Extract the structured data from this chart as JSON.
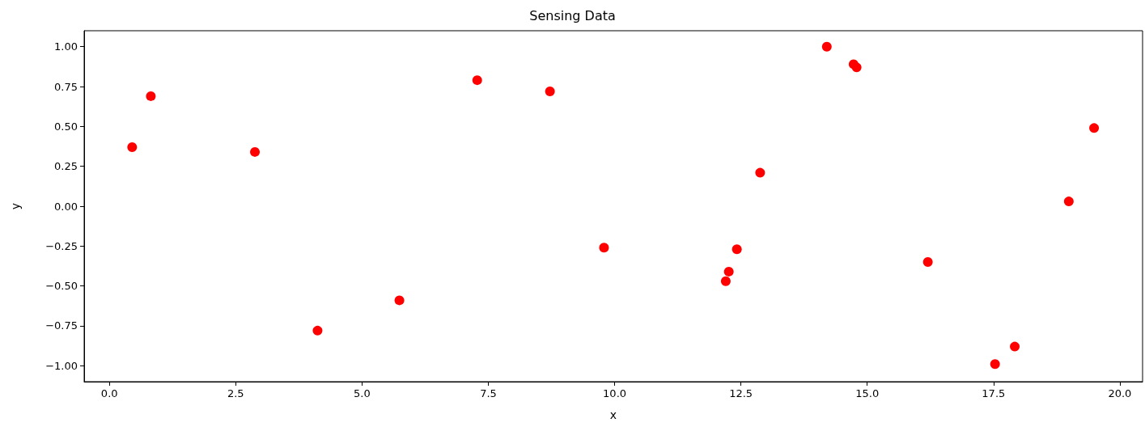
{
  "chart_data": {
    "type": "scatter",
    "title": "Sensing Data",
    "xlabel": "x",
    "ylabel": "y",
    "x": [
      0.45,
      0.82,
      2.88,
      4.12,
      5.74,
      7.28,
      8.72,
      9.79,
      12.2,
      12.26,
      12.42,
      12.88,
      14.2,
      14.73,
      14.79,
      16.2,
      17.53,
      17.92,
      18.99,
      19.49
    ],
    "series": [
      {
        "color": "#ff0000",
        "values": [
          0.37,
          0.69,
          0.34,
          -0.78,
          -0.59,
          0.79,
          0.72,
          -0.26,
          -0.47,
          -0.41,
          -0.27,
          0.21,
          1.0,
          0.89,
          0.87,
          -0.35,
          -0.99,
          -0.88,
          0.03,
          0.49
        ]
      }
    ],
    "xlim": [
      -0.5,
      20.45
    ],
    "ylim": [
      -1.1,
      1.1
    ],
    "xticks": [
      {
        "value": 0,
        "label": "0.0"
      },
      {
        "value": 2.5,
        "label": "2.5"
      },
      {
        "value": 5,
        "label": "5.0"
      },
      {
        "value": 7.5,
        "label": "7.5"
      },
      {
        "value": 10,
        "label": "10.0"
      },
      {
        "value": 12.5,
        "label": "12.5"
      },
      {
        "value": 15,
        "label": "15.0"
      },
      {
        "value": 17.5,
        "label": "17.5"
      },
      {
        "value": 20,
        "label": "20.0"
      }
    ],
    "yticks": [
      {
        "value": -1,
        "label": "−1.00"
      },
      {
        "value": -0.75,
        "label": "−0.75"
      },
      {
        "value": -0.5,
        "label": "−0.50"
      },
      {
        "value": -0.25,
        "label": "−0.25"
      },
      {
        "value": 0,
        "label": "0.00"
      },
      {
        "value": 0.25,
        "label": "0.25"
      },
      {
        "value": 0.5,
        "label": "0.50"
      },
      {
        "value": 0.75,
        "label": "0.75"
      },
      {
        "value": 1,
        "label": "1.00"
      }
    ],
    "grid": false,
    "marker": "circle"
  }
}
